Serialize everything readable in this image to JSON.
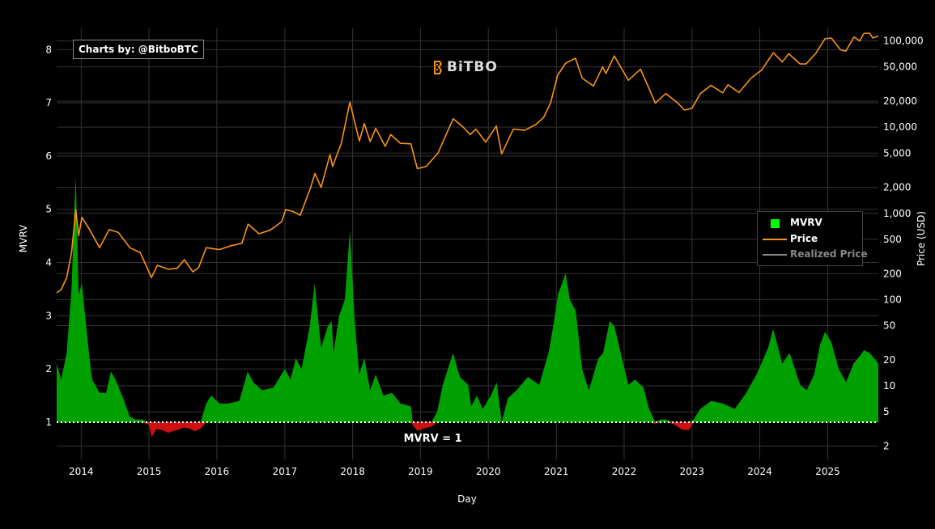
{
  "credit": "Charts by: @BitboBTC",
  "logo_text": "BiTBO",
  "colors": {
    "background": "#000000",
    "mvrv_positive": "#00a000",
    "mvrv_negative": "#d01010",
    "price": "#f7931a",
    "realized_price": "#888888",
    "legend_mvrv": "#00ff00",
    "grid": "#333333",
    "mvrv_one_line": "#ffffff"
  },
  "chart_data": {
    "type": "area",
    "xlabel": "Day",
    "ylabel_left": "MVRV",
    "ylabel_right": "Price (USD)",
    "x_ticks": [
      "2014",
      "2015",
      "2016",
      "2017",
      "2018",
      "2019",
      "2020",
      "2021",
      "2022",
      "2023",
      "2024",
      "2025"
    ],
    "x_range": [
      "2013-08-22",
      "2025-09-30"
    ],
    "y_left_ticks": [
      1,
      2,
      3,
      4,
      5,
      6,
      7,
      8
    ],
    "y_left_range": [
      0.3,
      8.4
    ],
    "y_right_scale": "log",
    "y_right_ticks": [
      {
        "value": 2,
        "label": "2"
      },
      {
        "value": 5,
        "label": "5"
      },
      {
        "value": 10,
        "label": "10"
      },
      {
        "value": 20,
        "label": "20"
      },
      {
        "value": 50,
        "label": "50"
      },
      {
        "value": 100,
        "label": "100"
      },
      {
        "value": 200,
        "label": "200"
      },
      {
        "value": 500,
        "label": "500"
      },
      {
        "value": 1000,
        "label": "1,000"
      },
      {
        "value": 2000,
        "label": "2,000"
      },
      {
        "value": 5000,
        "label": "5,000"
      },
      {
        "value": 10000,
        "label": "10,000"
      },
      {
        "value": 20000,
        "label": "20,000"
      },
      {
        "value": 50000,
        "label": "50,000"
      },
      {
        "value": 100000,
        "label": "100,000"
      }
    ],
    "y_right_range": [
      1.4,
      140000
    ],
    "grid": true,
    "legend_position": "right",
    "annotations": [
      {
        "text": "MVRV = 1",
        "x": "2019-01-15",
        "y": 1
      }
    ],
    "reference_line": {
      "y": 1,
      "style": "dotted"
    },
    "series": [
      {
        "name": "MVRV",
        "kind": "area",
        "points": [
          [
            "2013-08-22",
            2.1
          ],
          [
            "2013-09-15",
            1.8
          ],
          [
            "2013-10-15",
            2.3
          ],
          [
            "2013-11-10",
            3.5
          ],
          [
            "2013-11-25",
            5.0
          ],
          [
            "2013-12-03",
            5.6
          ],
          [
            "2013-12-18",
            3.4
          ],
          [
            "2014-01-05",
            3.6
          ],
          [
            "2014-01-25",
            2.9
          ],
          [
            "2014-02-15",
            2.2
          ],
          [
            "2014-03-01",
            1.8
          ],
          [
            "2014-04-10",
            1.55
          ],
          [
            "2014-05-15",
            1.55
          ],
          [
            "2014-06-10",
            1.95
          ],
          [
            "2014-07-05",
            1.8
          ],
          [
            "2014-08-20",
            1.4
          ],
          [
            "2014-09-20",
            1.1
          ],
          [
            "2014-10-20",
            1.05
          ],
          [
            "2014-11-25",
            1.05
          ],
          [
            "2015-01-01",
            0.95
          ],
          [
            "2015-01-15",
            0.72
          ],
          [
            "2015-02-10",
            0.87
          ],
          [
            "2015-03-15",
            0.85
          ],
          [
            "2015-04-15",
            0.8
          ],
          [
            "2015-05-15",
            0.84
          ],
          [
            "2015-06-10",
            0.86
          ],
          [
            "2015-07-05",
            0.9
          ],
          [
            "2015-08-10",
            0.88
          ],
          [
            "2015-09-05",
            0.83
          ],
          [
            "2015-10-05",
            0.88
          ],
          [
            "2015-11-05",
            1.35
          ],
          [
            "2015-12-01",
            1.5
          ],
          [
            "2016-01-15",
            1.35
          ],
          [
            "2016-03-01",
            1.35
          ],
          [
            "2016-05-01",
            1.4
          ],
          [
            "2016-06-15",
            1.95
          ],
          [
            "2016-07-15",
            1.75
          ],
          [
            "2016-09-01",
            1.6
          ],
          [
            "2016-11-01",
            1.65
          ],
          [
            "2017-01-01",
            2.0
          ],
          [
            "2017-02-01",
            1.8
          ],
          [
            "2017-03-01",
            2.2
          ],
          [
            "2017-04-01",
            2.0
          ],
          [
            "2017-05-15",
            2.8
          ],
          [
            "2017-06-10",
            3.6
          ],
          [
            "2017-07-15",
            2.4
          ],
          [
            "2017-08-20",
            2.8
          ],
          [
            "2017-09-10",
            2.9
          ],
          [
            "2017-09-20",
            2.3
          ],
          [
            "2017-10-20",
            3.0
          ],
          [
            "2017-11-20",
            3.3
          ],
          [
            "2017-12-17",
            4.6
          ],
          [
            "2018-01-10",
            3.0
          ],
          [
            "2018-02-05",
            1.9
          ],
          [
            "2018-03-05",
            2.2
          ],
          [
            "2018-04-05",
            1.6
          ],
          [
            "2018-05-05",
            1.9
          ],
          [
            "2018-06-15",
            1.5
          ],
          [
            "2018-08-01",
            1.55
          ],
          [
            "2018-09-15",
            1.35
          ],
          [
            "2018-11-10",
            1.3
          ],
          [
            "2018-11-20",
            0.95
          ],
          [
            "2018-12-15",
            0.84
          ],
          [
            "2019-01-15",
            0.88
          ],
          [
            "2019-03-01",
            0.92
          ],
          [
            "2019-04-01",
            1.2
          ],
          [
            "2019-05-01",
            1.7
          ],
          [
            "2019-06-25",
            2.3
          ],
          [
            "2019-08-01",
            1.85
          ],
          [
            "2019-09-15",
            1.7
          ],
          [
            "2019-10-01",
            1.3
          ],
          [
            "2019-11-01",
            1.5
          ],
          [
            "2019-12-01",
            1.25
          ],
          [
            "2020-01-15",
            1.5
          ],
          [
            "2020-02-15",
            1.75
          ],
          [
            "2020-03-13",
            1.0
          ],
          [
            "2020-04-15",
            1.45
          ],
          [
            "2020-06-01",
            1.6
          ],
          [
            "2020-08-01",
            1.85
          ],
          [
            "2020-10-01",
            1.7
          ],
          [
            "2020-11-20",
            2.3
          ],
          [
            "2020-12-20",
            2.9
          ],
          [
            "2021-01-10",
            3.4
          ],
          [
            "2021-02-20",
            3.8
          ],
          [
            "2021-03-15",
            3.3
          ],
          [
            "2021-04-15",
            3.1
          ],
          [
            "2021-05-20",
            2.0
          ],
          [
            "2021-06-25",
            1.6
          ],
          [
            "2021-08-15",
            2.2
          ],
          [
            "2021-09-10",
            2.3
          ],
          [
            "2021-10-15",
            2.9
          ],
          [
            "2021-11-10",
            2.8
          ],
          [
            "2021-12-20",
            2.2
          ],
          [
            "2022-01-24",
            1.7
          ],
          [
            "2022-03-01",
            1.8
          ],
          [
            "2022-04-15",
            1.65
          ],
          [
            "2022-05-15",
            1.25
          ],
          [
            "2022-06-18",
            0.97
          ],
          [
            "2022-07-15",
            1.05
          ],
          [
            "2022-08-15",
            1.05
          ],
          [
            "2022-09-20",
            0.97
          ],
          [
            "2022-11-10",
            0.86
          ],
          [
            "2022-12-15",
            0.85
          ],
          [
            "2023-01-10",
            1.05
          ],
          [
            "2023-02-15",
            1.25
          ],
          [
            "2023-04-15",
            1.4
          ],
          [
            "2023-06-15",
            1.35
          ],
          [
            "2023-08-20",
            1.25
          ],
          [
            "2023-10-20",
            1.55
          ],
          [
            "2023-12-15",
            1.9
          ],
          [
            "2024-02-15",
            2.4
          ],
          [
            "2024-03-13",
            2.75
          ],
          [
            "2024-05-01",
            2.1
          ],
          [
            "2024-06-10",
            2.3
          ],
          [
            "2024-08-05",
            1.7
          ],
          [
            "2024-09-10",
            1.6
          ],
          [
            "2024-10-20",
            1.9
          ],
          [
            "2024-11-20",
            2.45
          ],
          [
            "2024-12-17",
            2.7
          ],
          [
            "2025-01-20",
            2.5
          ],
          [
            "2025-03-01",
            2.0
          ],
          [
            "2025-04-09",
            1.75
          ],
          [
            "2025-05-20",
            2.1
          ],
          [
            "2025-07-15",
            2.35
          ],
          [
            "2025-08-15",
            2.3
          ],
          [
            "2025-09-30",
            2.1
          ]
        ]
      },
      {
        "name": "Price",
        "kind": "line",
        "points": [
          [
            "2013-08-22",
            120
          ],
          [
            "2013-09-15",
            130
          ],
          [
            "2013-10-15",
            180
          ],
          [
            "2013-11-10",
            350
          ],
          [
            "2013-12-03",
            1100
          ],
          [
            "2013-12-18",
            550
          ],
          [
            "2014-01-05",
            900
          ],
          [
            "2014-02-15",
            650
          ],
          [
            "2014-04-10",
            400
          ],
          [
            "2014-06-01",
            650
          ],
          [
            "2014-07-20",
            600
          ],
          [
            "2014-09-20",
            400
          ],
          [
            "2014-11-15",
            350
          ],
          [
            "2015-01-14",
            180
          ],
          [
            "2015-02-15",
            250
          ],
          [
            "2015-04-15",
            225
          ],
          [
            "2015-06-01",
            230
          ],
          [
            "2015-07-10",
            290
          ],
          [
            "2015-08-25",
            210
          ],
          [
            "2015-09-25",
            235
          ],
          [
            "2015-11-05",
            400
          ],
          [
            "2016-01-15",
            380
          ],
          [
            "2016-03-15",
            420
          ],
          [
            "2016-05-15",
            450
          ],
          [
            "2016-06-17",
            750
          ],
          [
            "2016-08-15",
            580
          ],
          [
            "2016-10-15",
            640
          ],
          [
            "2016-12-15",
            800
          ],
          [
            "2017-01-05",
            1100
          ],
          [
            "2017-02-15",
            1050
          ],
          [
            "2017-03-25",
            950
          ],
          [
            "2017-05-20",
            2000
          ],
          [
            "2017-06-12",
            2900
          ],
          [
            "2017-07-15",
            2000
          ],
          [
            "2017-09-01",
            4800
          ],
          [
            "2017-09-15",
            3500
          ],
          [
            "2017-11-01",
            6500
          ],
          [
            "2017-12-17",
            19500
          ],
          [
            "2018-02-06",
            6900
          ],
          [
            "2018-03-05",
            11000
          ],
          [
            "2018-04-05",
            6800
          ],
          [
            "2018-05-05",
            9700
          ],
          [
            "2018-06-25",
            6000
          ],
          [
            "2018-07-25",
            8200
          ],
          [
            "2018-09-15",
            6500
          ],
          [
            "2018-11-10",
            6400
          ],
          [
            "2018-12-15",
            3300
          ],
          [
            "2019-02-01",
            3500
          ],
          [
            "2019-04-05",
            5000
          ],
          [
            "2019-06-26",
            12500
          ],
          [
            "2019-08-15",
            10200
          ],
          [
            "2019-09-25",
            8200
          ],
          [
            "2019-10-26",
            9500
          ],
          [
            "2019-12-18",
            6700
          ],
          [
            "2020-02-13",
            10300
          ],
          [
            "2020-03-13",
            4900
          ],
          [
            "2020-05-15",
            9500
          ],
          [
            "2020-07-15",
            9200
          ],
          [
            "2020-09-15",
            10800
          ],
          [
            "2020-10-25",
            13000
          ],
          [
            "2020-12-01",
            19000
          ],
          [
            "2021-01-08",
            40000
          ],
          [
            "2021-02-20",
            55000
          ],
          [
            "2021-04-14",
            63000
          ],
          [
            "2021-05-20",
            37000
          ],
          [
            "2021-07-20",
            30000
          ],
          [
            "2021-09-07",
            50000
          ],
          [
            "2021-09-25",
            42000
          ],
          [
            "2021-11-09",
            67000
          ],
          [
            "2021-12-20",
            47000
          ],
          [
            "2022-01-24",
            35000
          ],
          [
            "2022-03-30",
            47000
          ],
          [
            "2022-05-12",
            29000
          ],
          [
            "2022-06-18",
            19000
          ],
          [
            "2022-08-13",
            24500
          ],
          [
            "2022-10-15",
            19200
          ],
          [
            "2022-11-21",
            15800
          ],
          [
            "2023-01-01",
            16500
          ],
          [
            "2023-02-15",
            24500
          ],
          [
            "2023-04-14",
            30500
          ],
          [
            "2023-06-15",
            25000
          ],
          [
            "2023-07-14",
            31000
          ],
          [
            "2023-09-11",
            25200
          ],
          [
            "2023-11-15",
            37000
          ],
          [
            "2024-01-11",
            46000
          ],
          [
            "2024-03-14",
            73000
          ],
          [
            "2024-05-01",
            57000
          ],
          [
            "2024-06-05",
            71000
          ],
          [
            "2024-08-05",
            54000
          ],
          [
            "2024-09-06",
            54000
          ],
          [
            "2024-10-29",
            72000
          ],
          [
            "2024-12-17",
            106000
          ],
          [
            "2025-01-20",
            108000
          ],
          [
            "2025-03-10",
            79000
          ],
          [
            "2025-04-08",
            76000
          ],
          [
            "2025-05-22",
            111000
          ],
          [
            "2025-06-22",
            100000
          ],
          [
            "2025-07-14",
            122000
          ],
          [
            "2025-08-14",
            123000
          ],
          [
            "2025-09-01",
            108000
          ],
          [
            "2025-09-30",
            114000
          ]
        ]
      },
      {
        "name": "Realized Price",
        "kind": "line",
        "visible": false,
        "points": []
      }
    ]
  }
}
